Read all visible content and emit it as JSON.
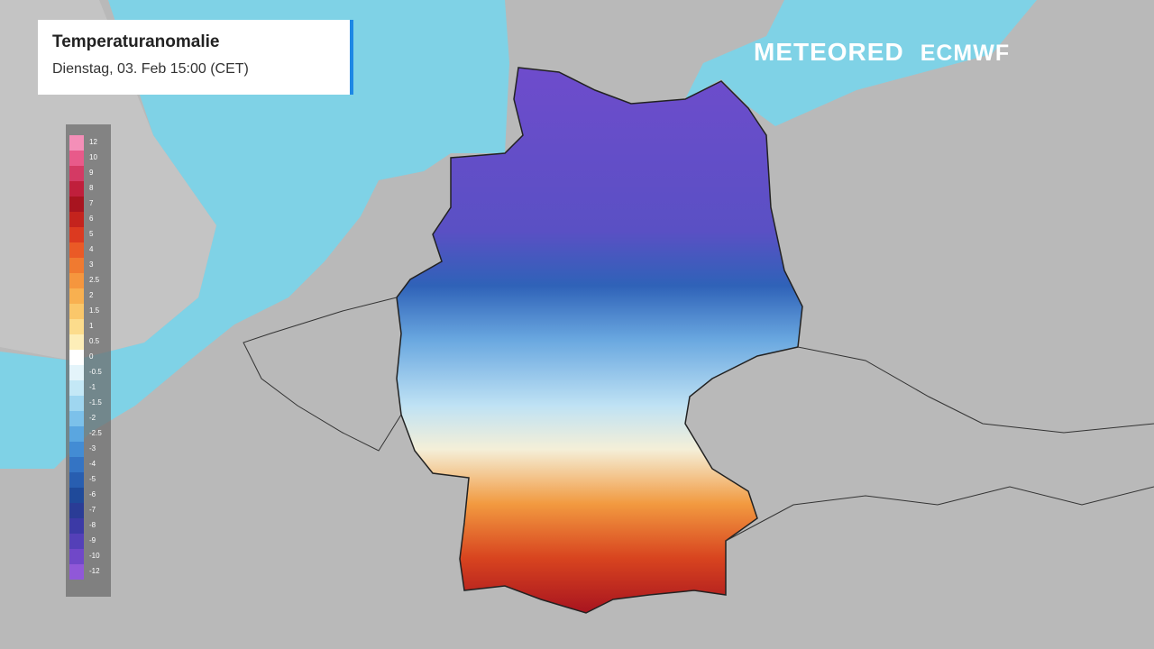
{
  "header": {
    "title": "Temperaturanomalie",
    "subtitle": "Dienstag, 03. Feb 15:00 (CET)"
  },
  "logos": [
    "METEORED",
    "ECMWF"
  ],
  "legend": {
    "entries": [
      {
        "label": "12",
        "color": "#f48fb8"
      },
      {
        "label": "10",
        "color": "#e85a8a"
      },
      {
        "label": "9",
        "color": "#d43a64"
      },
      {
        "label": "8",
        "color": "#c01f3c"
      },
      {
        "label": "7",
        "color": "#a8141f"
      },
      {
        "label": "6",
        "color": "#c4231d"
      },
      {
        "label": "5",
        "color": "#dc3a20"
      },
      {
        "label": "4",
        "color": "#ea5a26"
      },
      {
        "label": "3",
        "color": "#f07a30"
      },
      {
        "label": "2.5",
        "color": "#f5963e"
      },
      {
        "label": "2",
        "color": "#f8b050"
      },
      {
        "label": "1.5",
        "color": "#fac76a"
      },
      {
        "label": "1",
        "color": "#fcdc8c"
      },
      {
        "label": "0.5",
        "color": "#fdeeb8"
      },
      {
        "label": "0",
        "color": "#ffffff"
      },
      {
        "label": "-0.5",
        "color": "#e4f4fa"
      },
      {
        "label": "-1",
        "color": "#c4e8f6"
      },
      {
        "label": "-1.5",
        "color": "#9fd6f0"
      },
      {
        "label": "-2",
        "color": "#7cc1ea"
      },
      {
        "label": "-2.5",
        "color": "#5aa6e0"
      },
      {
        "label": "-3",
        "color": "#438cd4"
      },
      {
        "label": "-4",
        "color": "#3474c4"
      },
      {
        "label": "-5",
        "color": "#285eb0"
      },
      {
        "label": "-6",
        "color": "#1f4a9a"
      },
      {
        "label": "-7",
        "color": "#2a3c96"
      },
      {
        "label": "-8",
        "color": "#3c3aa6"
      },
      {
        "label": "-9",
        "color": "#5440b8"
      },
      {
        "label": "-10",
        "color": "#7048c8"
      },
      {
        "label": "-12",
        "color": "#9058d8"
      }
    ]
  }
}
